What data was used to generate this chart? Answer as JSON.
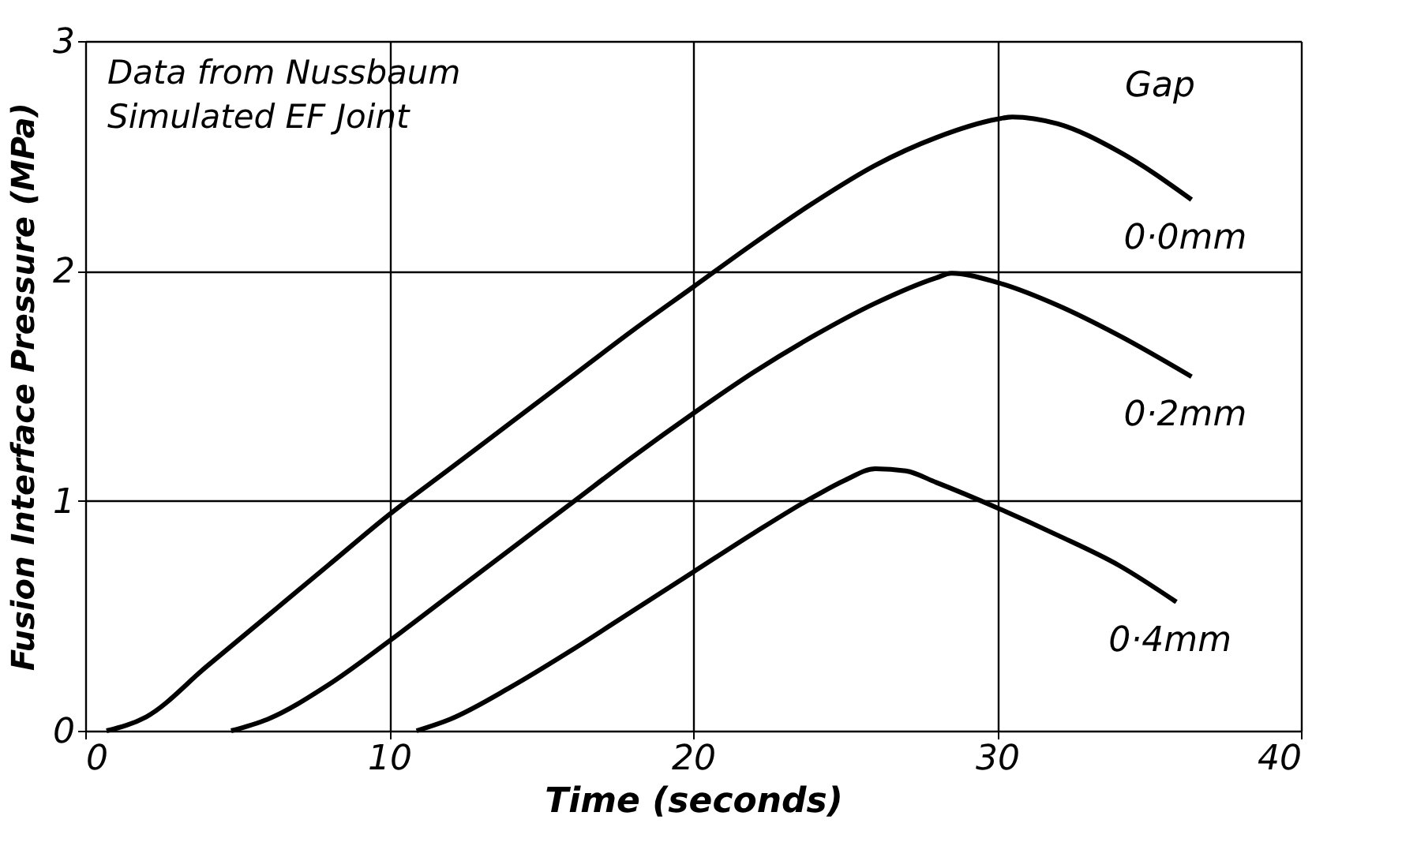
{
  "chart_data": {
    "type": "line",
    "xlabel": "Time (seconds)",
    "ylabel": "Fusion Interface Pressure (MPa)",
    "legend_title": "Gap",
    "annotations": [
      "Data from Nussbaum",
      "Simulated EF Joint"
    ],
    "series": [
      {
        "name": "0·0mm",
        "color": "#000000",
        "x": [
          0.7,
          2,
          4,
          6,
          8,
          10,
          12,
          14,
          16,
          18,
          20,
          22,
          24,
          26,
          28,
          30,
          30.5,
          32,
          34,
          36.4
        ],
        "values": [
          0,
          0.06,
          0.28,
          0.5,
          0.72,
          0.94,
          1.14,
          1.34,
          1.54,
          1.74,
          1.93,
          2.12,
          2.3,
          2.46,
          2.58,
          2.66,
          2.67,
          2.64,
          2.52,
          2.31
        ]
      },
      {
        "name": "0·2mm",
        "color": "#000000",
        "x": [
          4.8,
          6,
          8,
          10,
          12,
          14,
          16,
          18,
          20,
          22,
          24,
          26,
          28,
          28.5,
          30,
          32,
          34,
          36.4
        ],
        "values": [
          0,
          0.05,
          0.2,
          0.39,
          0.59,
          0.79,
          0.99,
          1.19,
          1.38,
          1.56,
          1.72,
          1.86,
          1.97,
          1.99,
          1.95,
          1.85,
          1.72,
          1.54
        ]
      },
      {
        "name": "0·4mm",
        "color": "#000000",
        "x": [
          10.9,
          12,
          14,
          16,
          18,
          20,
          22,
          24,
          25,
          26,
          27,
          28,
          30,
          32,
          34,
          35.9
        ],
        "values": [
          0,
          0.05,
          0.19,
          0.35,
          0.52,
          0.69,
          0.86,
          1.02,
          1.09,
          1.14,
          1.13,
          1.08,
          0.97,
          0.85,
          0.72,
          0.56
        ]
      }
    ],
    "xlim": [
      0,
      40
    ],
    "xticks": [
      0,
      10,
      20,
      30,
      40
    ],
    "ylim": [
      0,
      3
    ],
    "yticks": [
      0,
      1,
      2,
      3
    ],
    "grid": true,
    "legend": false,
    "marker": "none",
    "line_style": "solid"
  }
}
